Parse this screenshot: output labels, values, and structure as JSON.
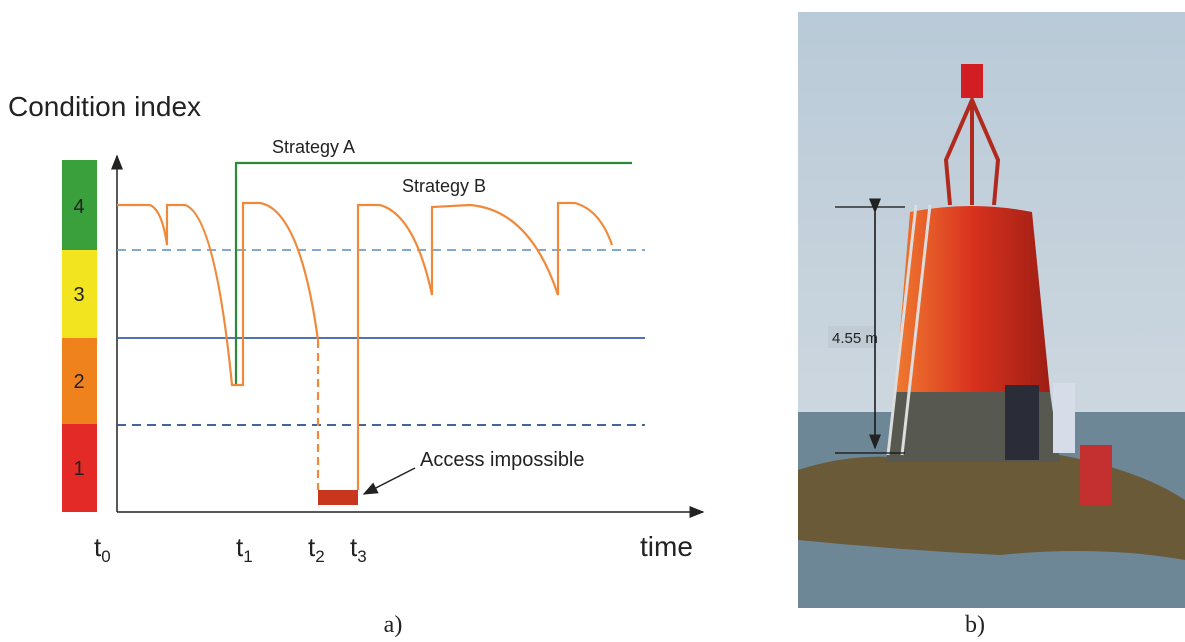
{
  "panel_a": {
    "y_axis_title": "Condition index",
    "levels": [
      "4",
      "3",
      "2",
      "1"
    ],
    "strategy_a": "Strategy A",
    "strategy_b": "Strategy B",
    "annotation": "Access impossible",
    "time_ticks": [
      {
        "base": "t",
        "sub": "0"
      },
      {
        "base": "t",
        "sub": "1"
      },
      {
        "base": "t",
        "sub": "2"
      },
      {
        "base": "t",
        "sub": "3"
      }
    ],
    "x_axis_title": "time",
    "caption": "a)"
  },
  "panel_b": {
    "dimension": "4.55 m",
    "caption": "b)"
  }
}
